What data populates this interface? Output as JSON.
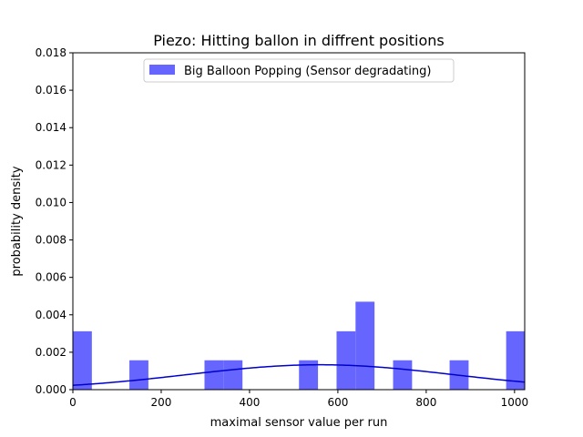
{
  "chart_data": {
    "type": "bar",
    "title": "Piezo: Hitting ballon in diffrent positions",
    "xlabel": "maximal sensor value per run",
    "ylabel": "probability density",
    "xlim": [
      0,
      1023
    ],
    "ylim": [
      0,
      0.018
    ],
    "xticks": [
      0,
      200,
      400,
      600,
      800,
      1000
    ],
    "yticks": [
      0.0,
      0.002,
      0.004,
      0.006,
      0.008,
      0.01,
      0.012,
      0.014,
      0.016,
      0.018
    ],
    "ytick_labels": [
      "0.000",
      "0.002",
      "0.004",
      "0.006",
      "0.008",
      "0.010",
      "0.012",
      "0.014",
      "0.016",
      "0.018"
    ],
    "legend": {
      "placement": "upper-center",
      "entries": [
        "Big Balloon Popping (Sensor degradating)"
      ]
    },
    "colors": {
      "bars": "#6666ff",
      "curve": "#0000cc"
    },
    "series": [
      {
        "name": "Big Balloon Popping (Sensor degradating)",
        "kind": "histogram",
        "bins": [
          {
            "x0": 0,
            "x1": 43,
            "density": 0.00312
          },
          {
            "x0": 128,
            "x1": 171,
            "density": 0.00157
          },
          {
            "x0": 298,
            "x1": 341,
            "density": 0.00157
          },
          {
            "x0": 341,
            "x1": 384,
            "density": 0.00157
          },
          {
            "x0": 512,
            "x1": 555,
            "density": 0.00157
          },
          {
            "x0": 597,
            "x1": 640,
            "density": 0.00312
          },
          {
            "x0": 640,
            "x1": 683,
            "density": 0.0047
          },
          {
            "x0": 725,
            "x1": 768,
            "density": 0.00157
          },
          {
            "x0": 853,
            "x1": 896,
            "density": 0.00157
          },
          {
            "x0": 981,
            "x1": 1023,
            "density": 0.00312
          }
        ]
      },
      {
        "kind": "normal-fit-curve",
        "mean": 560,
        "std": 300
      }
    ]
  }
}
